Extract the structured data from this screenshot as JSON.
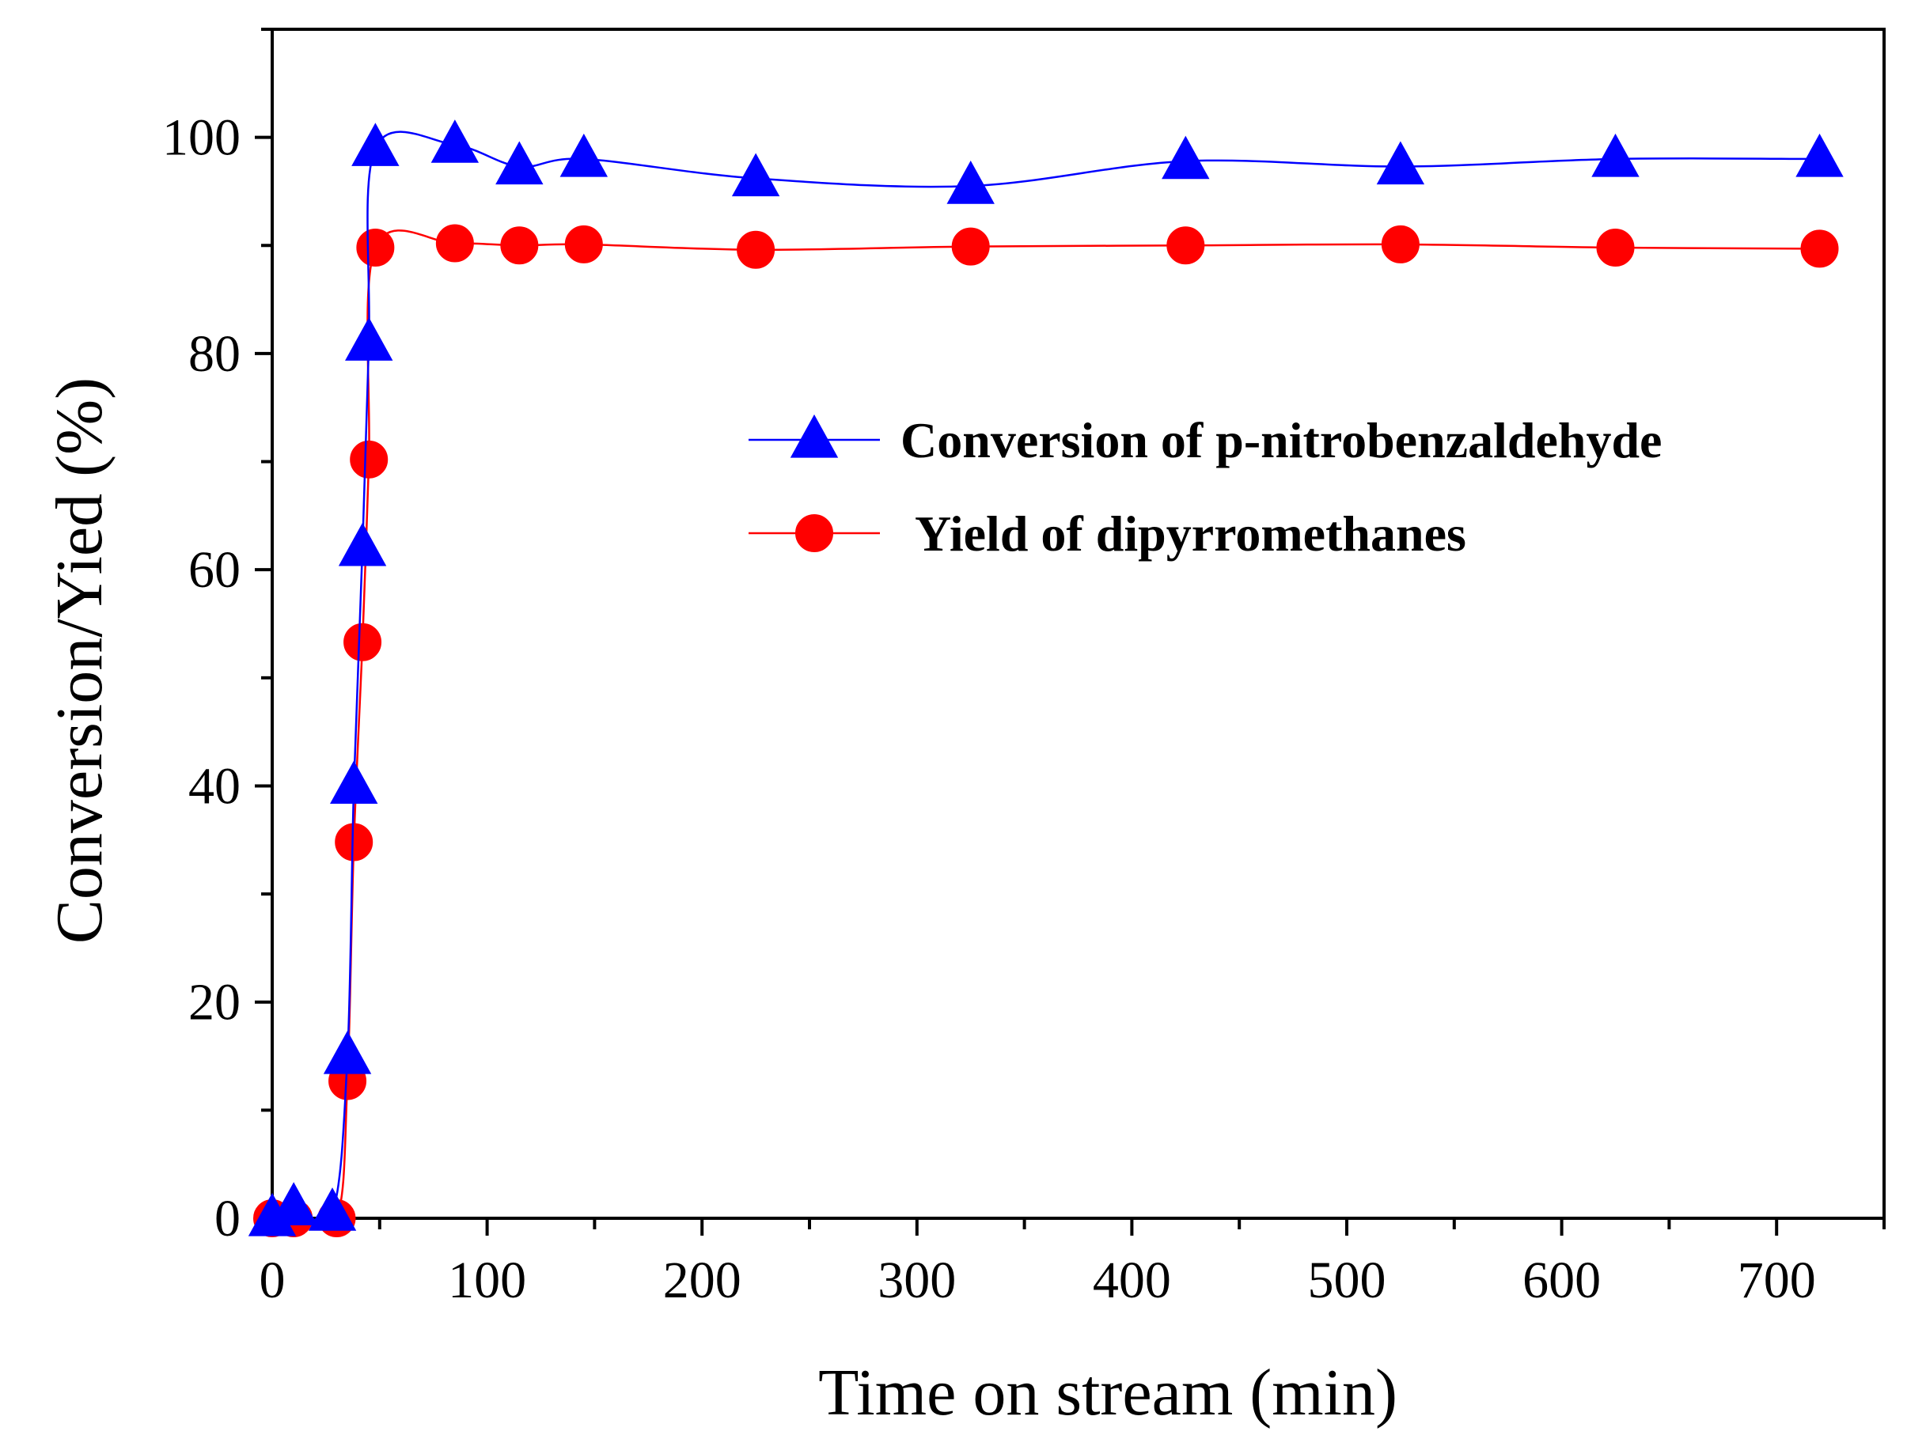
{
  "chart_data": {
    "type": "line",
    "title": "",
    "xlabel": "Time on stream (min)",
    "ylabel": "Conversion/Yied  (%)",
    "xlim": [
      0,
      750
    ],
    "ylim": [
      0,
      110
    ],
    "xticks": [
      0,
      100,
      200,
      300,
      400,
      500,
      600,
      700
    ],
    "yticks": [
      0,
      20,
      40,
      60,
      80,
      100
    ],
    "grid": false,
    "legend_position": "upper-right",
    "series": [
      {
        "name": "Conversion of p-nitrobenzaldehyde",
        "marker": "triangle",
        "color": "#0000ff",
        "x": [
          0,
          10,
          28,
          35,
          38,
          42,
          45,
          48,
          85,
          115,
          145,
          225,
          325,
          425,
          525,
          625,
          720
        ],
        "y": [
          0,
          1,
          0.5,
          15,
          40,
          62,
          81,
          99,
          99.3,
          97.3,
          98,
          96.2,
          95.5,
          97.8,
          97.3,
          98,
          98
        ]
      },
      {
        "name": "Yield of dipyrromethanes",
        "marker": "circle",
        "color": "#ff0000",
        "x": [
          0,
          10,
          30,
          35,
          38,
          42,
          45,
          48,
          85,
          115,
          145,
          225,
          325,
          425,
          525,
          625,
          720
        ],
        "y": [
          0,
          0,
          0,
          12.7,
          34.8,
          53.3,
          70.2,
          89.8,
          90.2,
          90,
          90.1,
          89.6,
          89.9,
          90,
          90.1,
          89.8,
          89.7
        ]
      }
    ]
  }
}
